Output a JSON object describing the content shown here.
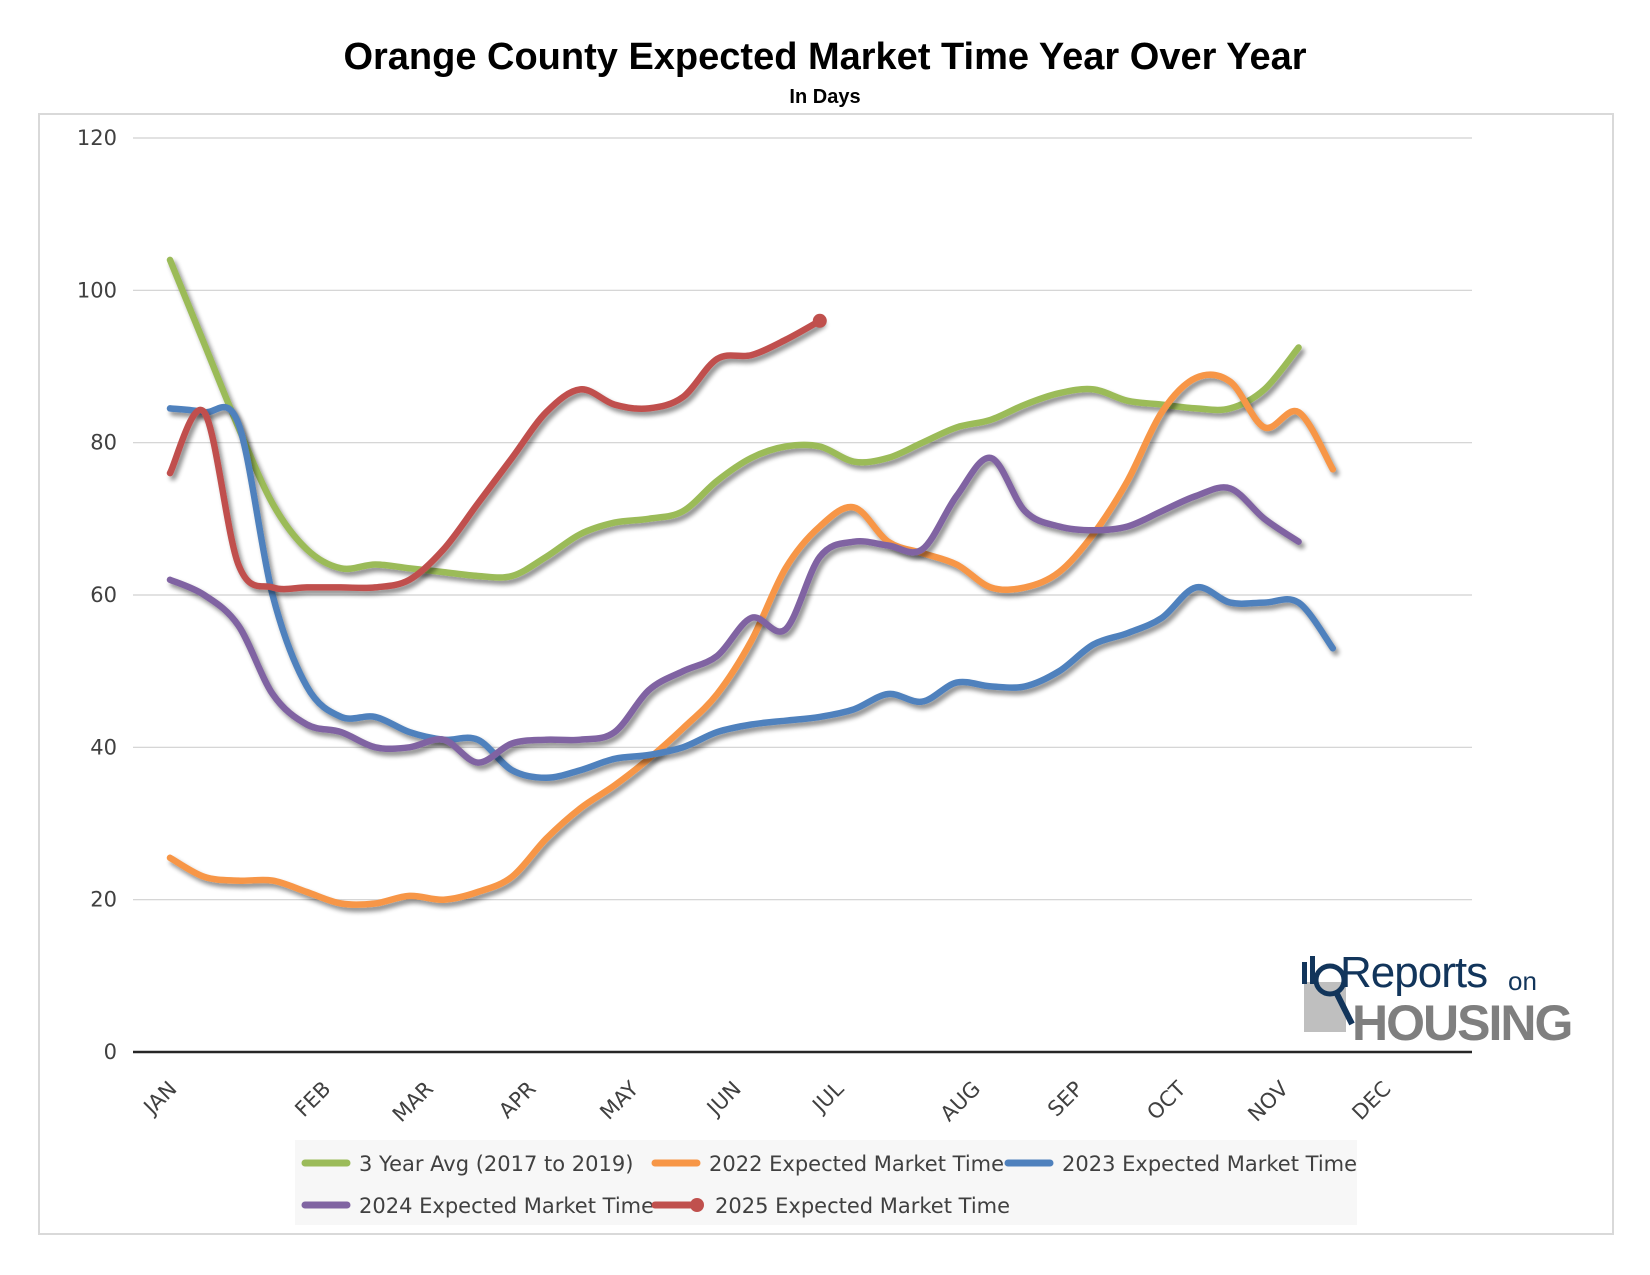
{
  "title": "Orange County Expected Market Time Year Over Year",
  "subtitle": "In Days",
  "logo": {
    "word1": "Reports",
    "word2": "on",
    "word3": "HOUSING"
  },
  "chart_data": {
    "type": "line",
    "title": "Orange County Expected Market Time Year Over Year",
    "subtitle": "In Days",
    "xlabel": "",
    "ylabel": "",
    "ylim": [
      0,
      120
    ],
    "yticks": [
      0,
      20,
      40,
      60,
      80,
      100,
      120
    ],
    "grid": true,
    "legend": "bottom",
    "month_ticks": [
      {
        "label": "JAN",
        "x": 0
      },
      {
        "label": "FEB",
        "x": 4.5
      },
      {
        "label": "MAR",
        "x": 7.5
      },
      {
        "label": "APR",
        "x": 10.5
      },
      {
        "label": "MAY",
        "x": 13.5
      },
      {
        "label": "JUN",
        "x": 16.5
      },
      {
        "label": "JUL",
        "x": 19.5
      },
      {
        "label": "AUG",
        "x": 23.5
      },
      {
        "label": "SEP",
        "x": 26.5
      },
      {
        "label": "OCT",
        "x": 29.5
      },
      {
        "label": "NOV",
        "x": 32.5
      },
      {
        "label": "DEC",
        "x": 35.5
      }
    ],
    "x": [
      0,
      1,
      2,
      3,
      4,
      5,
      6,
      7,
      8,
      9,
      10,
      11,
      12,
      13,
      14,
      15,
      16,
      17,
      18,
      19,
      20,
      21,
      22,
      23,
      24,
      25,
      26,
      27,
      28,
      29,
      30,
      31,
      32,
      33,
      34,
      35,
      36,
      37,
      38
    ],
    "series": [
      {
        "name": "3 Year Avg (2017 to 2019)",
        "color": "#9bbb59",
        "marker": false,
        "values": [
          104,
          93,
          82,
          72,
          66,
          63.5,
          64,
          63.5,
          63,
          62.5,
          62.5,
          65,
          68,
          69.5,
          70,
          71,
          75,
          78,
          79.5,
          79.5,
          77.5,
          78,
          80,
          82,
          83,
          85,
          86.5,
          87,
          85.5,
          85,
          84.5,
          84.5,
          87,
          92.5,
          null,
          null,
          null,
          null,
          null
        ]
      },
      {
        "name": "2022 Expected Market Time",
        "color": "#f79646",
        "marker": false,
        "values": [
          25.5,
          23,
          22.5,
          22.5,
          21,
          19.5,
          19.5,
          20.5,
          20,
          21,
          23,
          28,
          32,
          35,
          38.5,
          42.5,
          47,
          54,
          63.5,
          69,
          71.5,
          67,
          65.5,
          64,
          61,
          61,
          63,
          68,
          75,
          84,
          88.5,
          88,
          82,
          84,
          76.5,
          null,
          null,
          null,
          null
        ]
      },
      {
        "name": "2023 Expected Market Time",
        "color": "#4f81bd",
        "marker": false,
        "values": [
          84.5,
          84,
          82.5,
          60,
          48,
          44,
          44,
          42,
          41,
          41,
          37,
          36,
          37,
          38.5,
          39,
          40,
          42,
          43,
          43.5,
          44,
          45,
          47,
          46,
          48.5,
          48,
          48,
          50,
          53.5,
          55,
          57,
          61,
          59,
          59,
          59,
          53,
          null,
          null,
          null,
          null
        ]
      },
      {
        "name": "2024 Expected Market Time",
        "color": "#8064a2",
        "marker": false,
        "values": [
          62,
          60,
          56,
          47,
          43,
          42,
          40,
          40,
          41,
          38,
          40.5,
          41,
          41,
          42,
          47.5,
          50,
          52,
          57,
          55.5,
          65,
          67,
          66.5,
          66,
          73,
          78,
          71,
          69,
          68.5,
          69,
          71,
          73,
          74,
          70,
          67,
          null,
          null,
          null,
          null,
          null
        ]
      },
      {
        "name": "2025 Expected Market Time",
        "color": "#c0504d",
        "marker": true,
        "values": [
          76,
          84,
          64,
          61,
          61,
          61,
          61,
          62,
          66,
          72,
          78,
          84,
          87,
          85,
          84.5,
          86,
          91,
          91.5,
          93.5,
          96,
          null,
          null,
          null,
          null,
          null,
          null,
          null,
          null,
          null,
          null,
          null,
          null,
          null,
          null,
          null,
          null,
          null,
          null,
          null
        ]
      }
    ]
  }
}
